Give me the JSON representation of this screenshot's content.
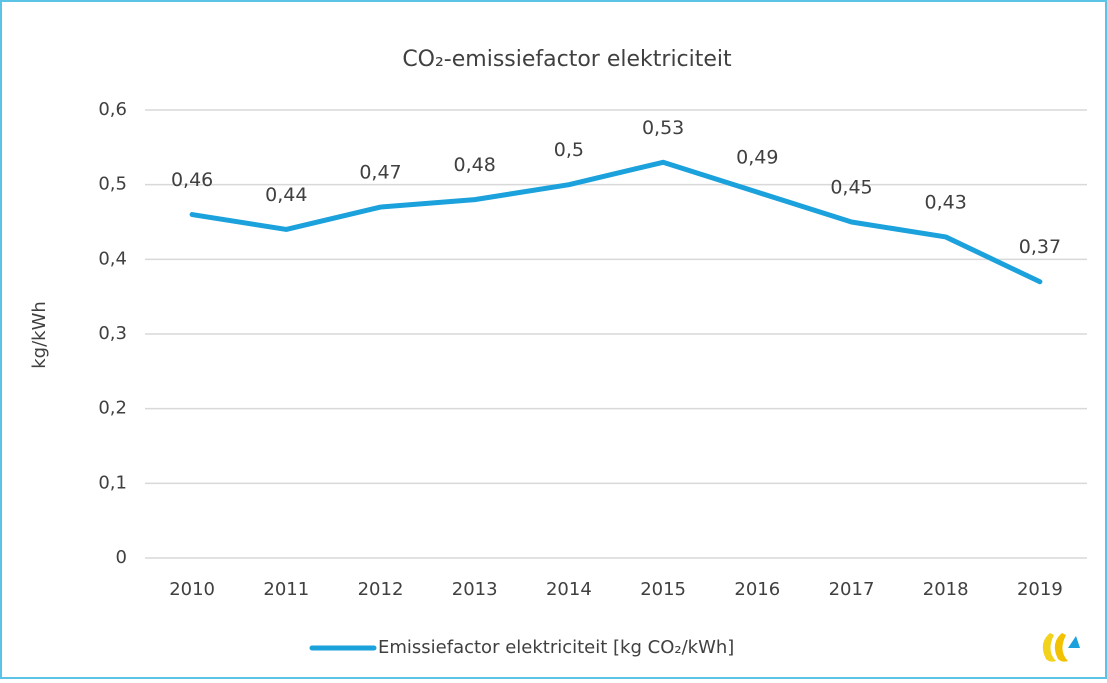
{
  "chart_data": {
    "type": "line",
    "title": "CO₂-emissiefactor elektriciteit",
    "y_label": "kg/kWh",
    "categories": [
      "2010",
      "2011",
      "2012",
      "2013",
      "2014",
      "2015",
      "2016",
      "2017",
      "2018",
      "2019"
    ],
    "series": [
      {
        "name": "Emissiefactor elektriciteit [kg CO₂/kWh]",
        "color": "#1ba1db",
        "values": [
          0.46,
          0.44,
          0.47,
          0.48,
          0.5,
          0.53,
          0.49,
          0.45,
          0.43,
          0.37
        ],
        "value_labels": [
          "0,46",
          "0,44",
          "0,47",
          "0,48",
          "0,5",
          "0,53",
          "0,49",
          "0,45",
          "0,43",
          "0,37"
        ]
      }
    ],
    "ylim": [
      0,
      0.6
    ],
    "yticks": [
      0,
      {
        "value": 0.1,
        "label": "0,1"
      },
      {
        "value": 0.2,
        "label": "0,2"
      },
      {
        "value": 0.3,
        "label": "0,3"
      },
      {
        "value": 0.4,
        "label": "0,4"
      },
      {
        "value": 0.5,
        "label": "0,5"
      },
      {
        "value": 0.6,
        "label": "0,6"
      }
    ],
    "grid": true,
    "legend": "bottom"
  }
}
